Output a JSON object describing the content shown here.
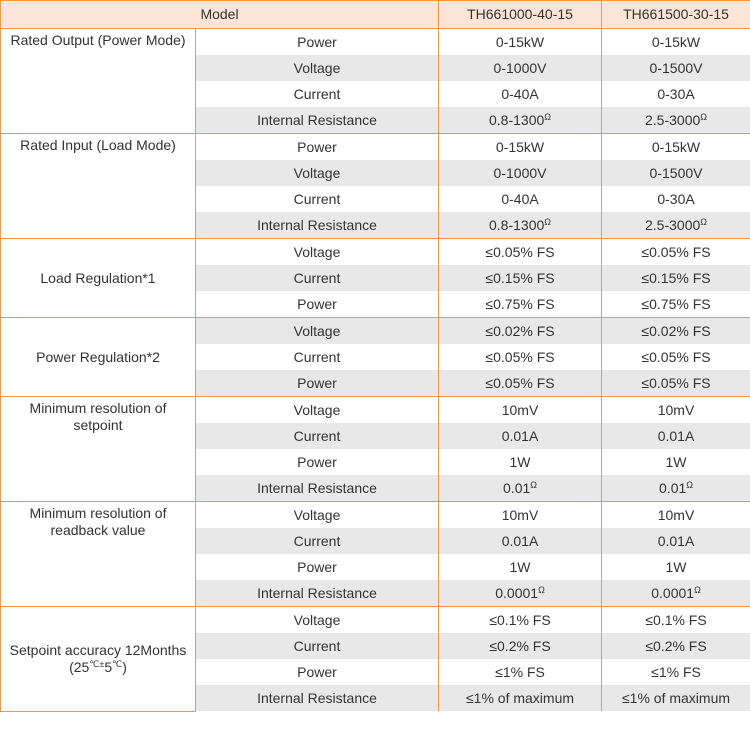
{
  "table": {
    "header": [
      "Model",
      "TH661000-40-15",
      "TH661500-30-15"
    ],
    "groups": [
      {
        "label": "Rated Output (Power Mode)",
        "rows": [
          {
            "param": "Power",
            "values": [
              "0-15kW",
              "0-15kW"
            ]
          },
          {
            "param": "Voltage",
            "values": [
              "0-1000V",
              "0-1500V"
            ]
          },
          {
            "param": "Current",
            "values": [
              "0-40A",
              "0-30A"
            ]
          },
          {
            "param": "Internal Resistance",
            "values": [
              {
                "text": "0.8-1300",
                "sup": "Ω"
              },
              {
                "text": "2.5-3000",
                "sup": "Ω"
              }
            ]
          }
        ]
      },
      {
        "label": "Rated Input (Load Mode)",
        "rows": [
          {
            "param": "Power",
            "values": [
              "0-15kW",
              "0-15kW"
            ]
          },
          {
            "param": "Voltage",
            "values": [
              "0-1000V",
              "0-1500V"
            ]
          },
          {
            "param": "Current",
            "values": [
              "0-40A",
              "0-30A"
            ]
          },
          {
            "param": "Internal Resistance",
            "values": [
              {
                "text": "0.8-1300",
                "sup": "Ω"
              },
              {
                "text": "2.5-3000",
                "sup": "Ω"
              }
            ]
          }
        ]
      },
      {
        "label": "Load Regulation*1",
        "rows": [
          {
            "param": "Voltage",
            "values": [
              "≤0.05% FS",
              "≤0.05% FS"
            ]
          },
          {
            "param": "Current",
            "values": [
              "≤0.15% FS",
              "≤0.15% FS"
            ]
          },
          {
            "param": "Power",
            "values": [
              "≤0.75% FS",
              "≤0.75% FS"
            ]
          }
        ]
      },
      {
        "label": "Power Regulation*2",
        "rows": [
          {
            "param": "Voltage",
            "values": [
              "≤0.02% FS",
              "≤0.02% FS"
            ]
          },
          {
            "param": "Current",
            "values": [
              "≤0.05% FS",
              "≤0.05% FS"
            ]
          },
          {
            "param": "Power",
            "values": [
              "≤0.05% FS",
              "≤0.05% FS"
            ]
          }
        ]
      },
      {
        "label": "Minimum resolution of setpoint",
        "rows": [
          {
            "param": "Voltage",
            "values": [
              "10mV",
              "10mV"
            ]
          },
          {
            "param": "Current",
            "values": [
              "0.01A",
              "0.01A"
            ]
          },
          {
            "param": "Power",
            "values": [
              "1W",
              "1W"
            ]
          },
          {
            "param": "Internal Resistance",
            "values": [
              {
                "text": "0.01",
                "sup": "Ω"
              },
              {
                "text": "0.01",
                "sup": "Ω"
              }
            ]
          }
        ]
      },
      {
        "label": "Minimum resolution of readback value",
        "rows": [
          {
            "param": "Voltage",
            "values": [
              "10mV",
              "10mV"
            ]
          },
          {
            "param": "Current",
            "values": [
              "0.01A",
              "0.01A"
            ]
          },
          {
            "param": "Power",
            "values": [
              "1W",
              "1W"
            ]
          },
          {
            "param": "Internal Resistance",
            "values": [
              {
                "text": "0.0001",
                "sup": "Ω"
              },
              {
                "text": "0.0001",
                "sup": "Ω"
              }
            ]
          }
        ]
      },
      {
        "label": "Setpoint accuracy 12Months",
        "label_note": [
          "(25",
          "℃±",
          "5",
          "℃",
          ")"
        ],
        "rows": [
          {
            "param": "Voltage",
            "values": [
              "≤0.1% FS",
              "≤0.1% FS"
            ]
          },
          {
            "param": "Current",
            "values": [
              "≤0.2% FS",
              "≤0.2% FS"
            ]
          },
          {
            "param": "Power",
            "values": [
              "≤1% FS",
              "≤1% FS"
            ]
          },
          {
            "param": "Internal Resistance",
            "values": [
              "≤1% of maximum",
              "≤1% of maximum"
            ]
          }
        ]
      }
    ]
  }
}
